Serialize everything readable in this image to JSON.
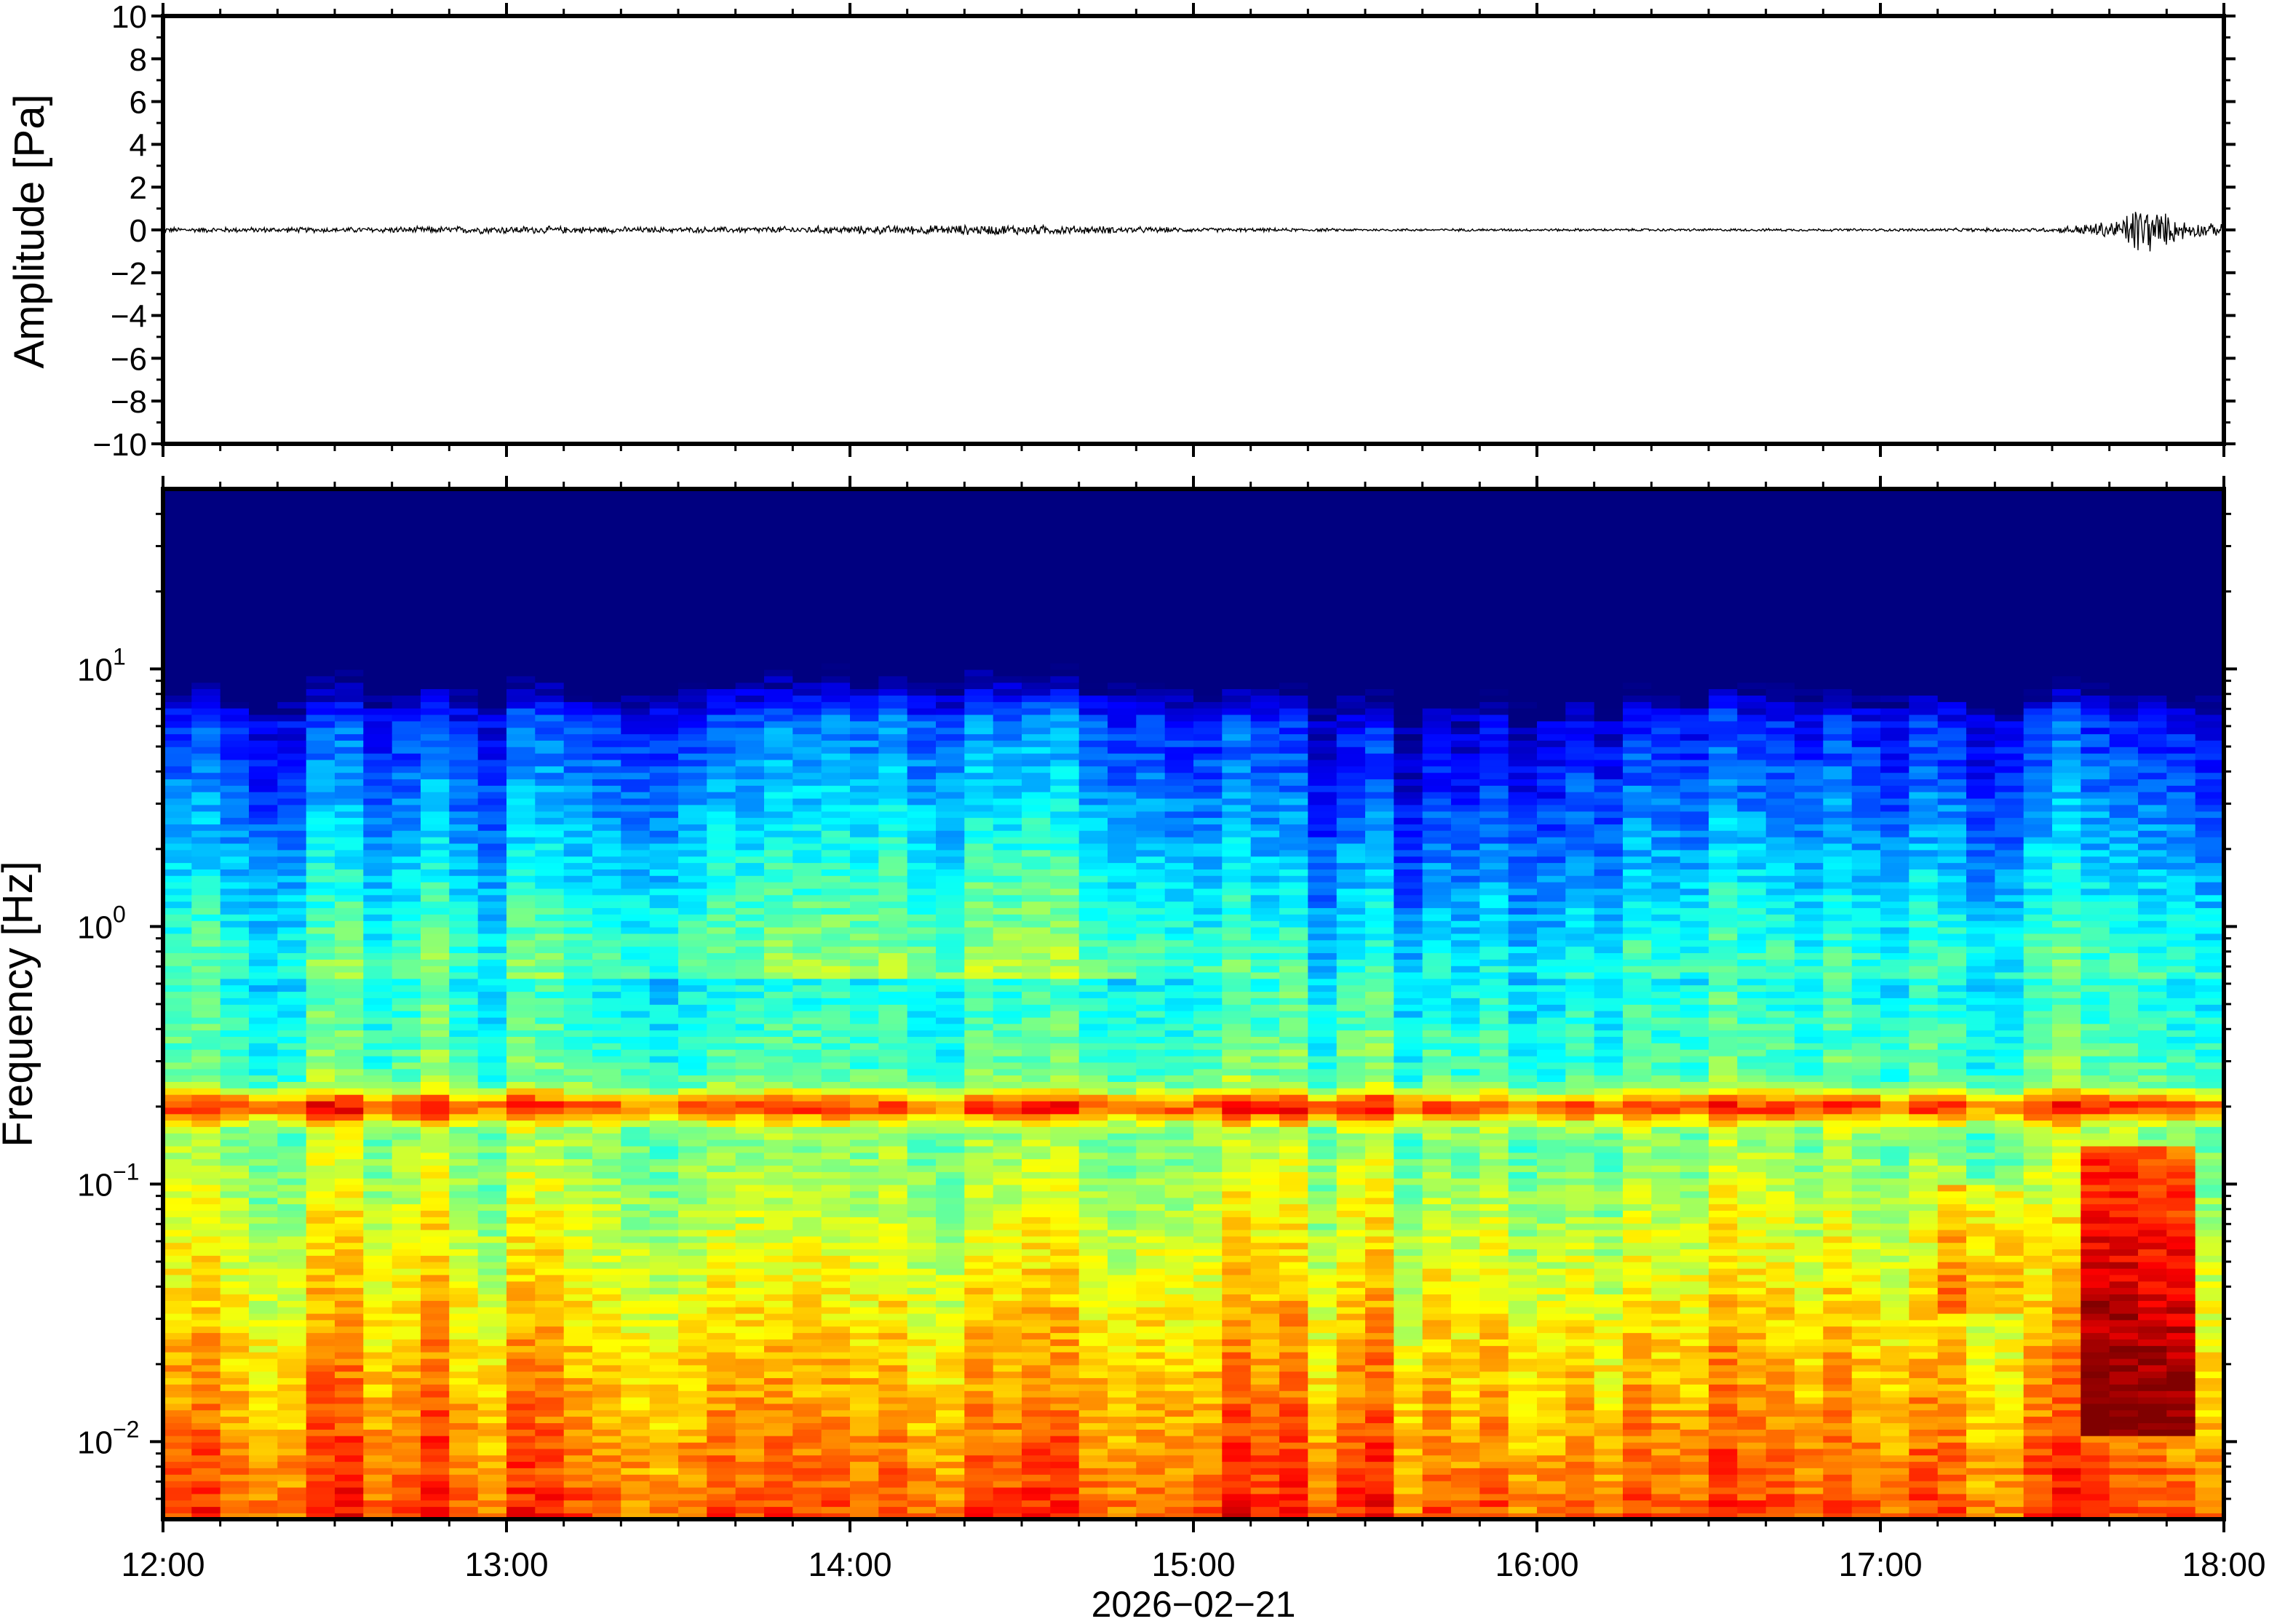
{
  "chart_data": [
    {
      "type": "line",
      "ylabel": "Amplitude [Pa]",
      "ylim": [
        -10,
        10
      ],
      "y_ticks": [
        "10",
        "8",
        "6",
        "4",
        "2",
        "0",
        "−2",
        "−4",
        "−6",
        "−8",
        "−10"
      ],
      "y_tick_values": [
        10,
        8,
        6,
        4,
        2,
        0,
        -2,
        -4,
        -6,
        -8,
        -10
      ],
      "xlim": [
        "12:00",
        "18:00"
      ],
      "grid": false,
      "series": [
        {
          "x_hours": [
            12.0,
            12.5,
            13.0,
            13.5,
            14.0,
            14.5,
            15.0,
            15.5,
            16.0,
            16.5,
            17.0,
            17.5,
            17.7,
            17.75,
            17.8,
            17.85,
            17.9,
            18.0
          ],
          "amplitude_envelope_pa": [
            0.1,
            0.1,
            0.15,
            0.1,
            0.15,
            0.2,
            0.08,
            0.05,
            0.05,
            0.05,
            0.05,
            0.08,
            0.4,
            1.1,
            0.8,
            0.5,
            0.3,
            0.2
          ],
          "color": "#000000"
        }
      ]
    },
    {
      "type": "heatmap",
      "ylabel": "Frequency [Hz]",
      "xlabel": "2026−02−21",
      "x_ticks": [
        "12:00",
        "13:00",
        "14:00",
        "15:00",
        "16:00",
        "17:00",
        "18:00"
      ],
      "x_tick_hours": [
        12,
        13,
        14,
        15,
        16,
        17,
        18
      ],
      "y_scale": "log",
      "ylim": [
        0.005,
        50
      ],
      "y_ticks": [
        {
          "base": "10",
          "exp": "1",
          "value": 10
        },
        {
          "base": "10",
          "exp": "0",
          "value": 1
        },
        {
          "base": "10",
          "exp": "−1",
          "value": 0.1
        },
        {
          "base": "10",
          "exp": "−2",
          "value": 0.01
        }
      ],
      "colormap": "jet",
      "colors": [
        "#00007f",
        "#0000ff",
        "#0080ff",
        "#00ffff",
        "#80ff80",
        "#ffff00",
        "#ff8000",
        "#ff0000"
      ],
      "grid": false,
      "features": {
        "microseism_band_hz": 0.2,
        "high_energy_event_hours": [
          17.62,
          17.92
        ],
        "high_energy_event_band_hz": [
          0.01,
          0.12
        ]
      }
    }
  ]
}
